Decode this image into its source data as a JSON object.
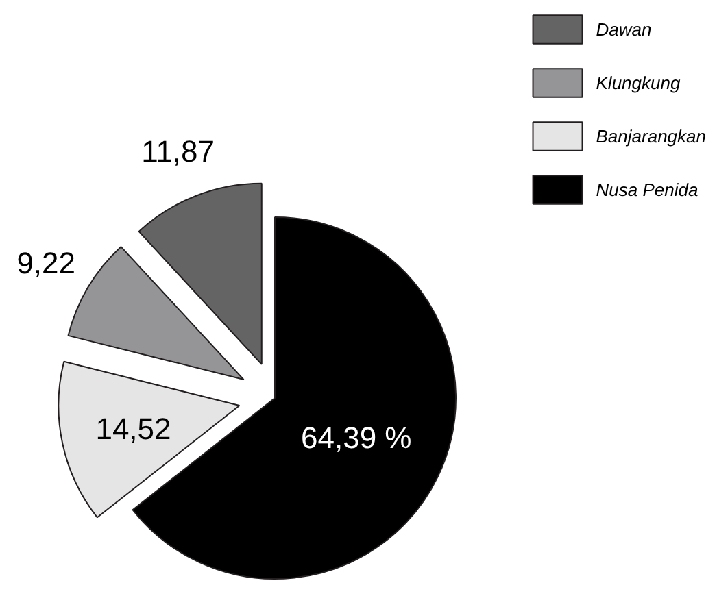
{
  "chart_data": {
    "type": "pie",
    "categories": [
      "Dawan",
      "Klungkung",
      "Banjarangkan",
      "Nusa Penida"
    ],
    "values": [
      11.87,
      9.22,
      14.52,
      64.39
    ],
    "colors": [
      "#646464",
      "#959597",
      "#e5e5e6",
      "#000000"
    ],
    "value_labels": [
      "11,87",
      "9,22",
      "14,52",
      "64,39 %"
    ],
    "legend": "top right"
  }
}
